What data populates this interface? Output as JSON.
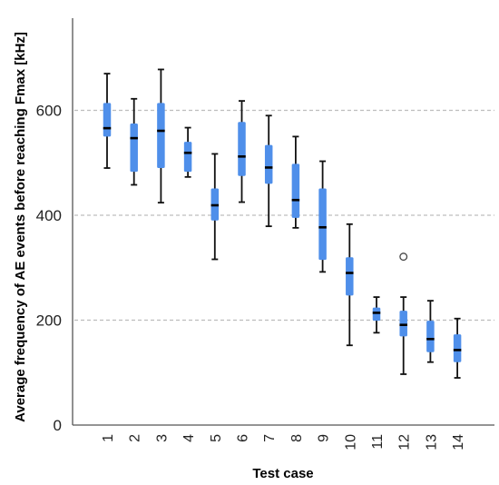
{
  "chart_data": {
    "type": "box",
    "xlabel": "Test case",
    "ylabel": "Average frequency of AE events before reaching Fmax [kHz]",
    "ylim": [
      0,
      770
    ],
    "yticks": [
      0,
      200,
      400,
      600
    ],
    "grid": "horizontal dashed at y ticks",
    "box_color": "#4f8fea",
    "median_color": "#000000",
    "categories": [
      "1",
      "2",
      "3",
      "4",
      "5",
      "6",
      "7",
      "8",
      "9",
      "10",
      "11",
      "12",
      "13",
      "14"
    ],
    "boxes": [
      {
        "case": "1",
        "min": 490,
        "q1": 550,
        "median": 566,
        "q3": 614,
        "max": 670,
        "outliers": []
      },
      {
        "case": "2",
        "min": 458,
        "q1": 483,
        "median": 547,
        "q3": 575,
        "max": 622,
        "outliers": []
      },
      {
        "case": "3",
        "min": 424,
        "q1": 490,
        "median": 561,
        "q3": 614,
        "max": 678,
        "outliers": []
      },
      {
        "case": "4",
        "min": 473,
        "q1": 483,
        "median": 519,
        "q3": 540,
        "max": 567,
        "outliers": []
      },
      {
        "case": "5",
        "min": 316,
        "q1": 390,
        "median": 419,
        "q3": 451,
        "max": 517,
        "outliers": []
      },
      {
        "case": "6",
        "min": 425,
        "q1": 475,
        "median": 512,
        "q3": 578,
        "max": 618,
        "outliers": []
      },
      {
        "case": "7",
        "min": 379,
        "q1": 460,
        "median": 491,
        "q3": 534,
        "max": 590,
        "outliers": []
      },
      {
        "case": "8",
        "min": 376,
        "q1": 395,
        "median": 429,
        "q3": 498,
        "max": 550,
        "outliers": []
      },
      {
        "case": "9",
        "min": 292,
        "q1": 315,
        "median": 377,
        "q3": 451,
        "max": 503,
        "outliers": []
      },
      {
        "case": "10",
        "min": 152,
        "q1": 247,
        "median": 290,
        "q3": 320,
        "max": 383,
        "outliers": []
      },
      {
        "case": "11",
        "min": 176,
        "q1": 199,
        "median": 214,
        "q3": 224,
        "max": 244,
        "outliers": []
      },
      {
        "case": "12",
        "min": 97,
        "q1": 169,
        "median": 191,
        "q3": 218,
        "max": 244,
        "outliers": [
          321
        ]
      },
      {
        "case": "13",
        "min": 120,
        "q1": 139,
        "median": 164,
        "q3": 199,
        "max": 237,
        "outliers": []
      },
      {
        "case": "14",
        "min": 90,
        "q1": 120,
        "median": 143,
        "q3": 173,
        "max": 203,
        "outliers": []
      }
    ]
  }
}
